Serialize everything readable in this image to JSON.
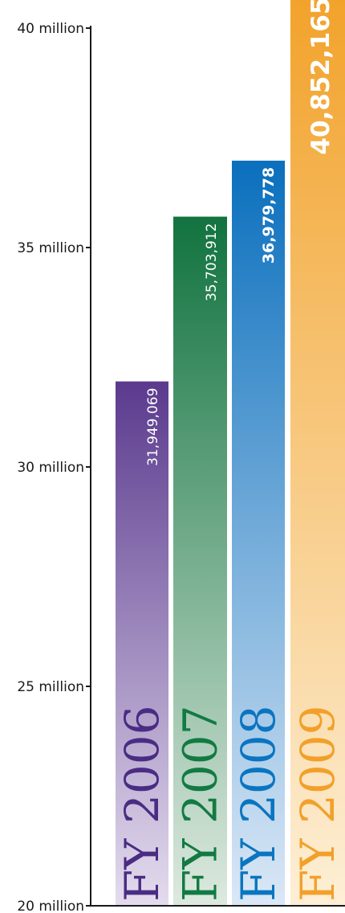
{
  "chart_data": {
    "type": "bar",
    "categories": [
      "FY 2006",
      "FY 2007",
      "FY 2008",
      "FY 2009"
    ],
    "values": [
      31949069,
      35703912,
      36979778,
      40852165
    ],
    "value_labels": [
      "31,949,069",
      "35,703,912",
      "36,979,778",
      "40,852,165"
    ],
    "title": "",
    "xlabel": "",
    "ylabel": "",
    "ylim": [
      20000000,
      40000000
    ],
    "y_ticks": [
      {
        "value": 20000000,
        "label": "20 million"
      },
      {
        "value": 25000000,
        "label": "25 million"
      },
      {
        "value": 30000000,
        "label": "30 million"
      },
      {
        "value": 35000000,
        "label": "35 million"
      },
      {
        "value": 40000000,
        "label": "40 million"
      }
    ],
    "grid": false,
    "legend": "none",
    "colors": [
      {
        "top": "#5b3a8e",
        "bottom": "#e4dcee",
        "label": "#4a2c84"
      },
      {
        "top": "#11733f",
        "bottom": "#dde9df",
        "label": "#127a43"
      },
      {
        "top": "#0a6fbd",
        "bottom": "#dbe8f6",
        "label": "#0a75c0"
      },
      {
        "top": "#f2a22a",
        "bottom": "#fdefd6",
        "label": "#f2a02a"
      }
    ]
  }
}
